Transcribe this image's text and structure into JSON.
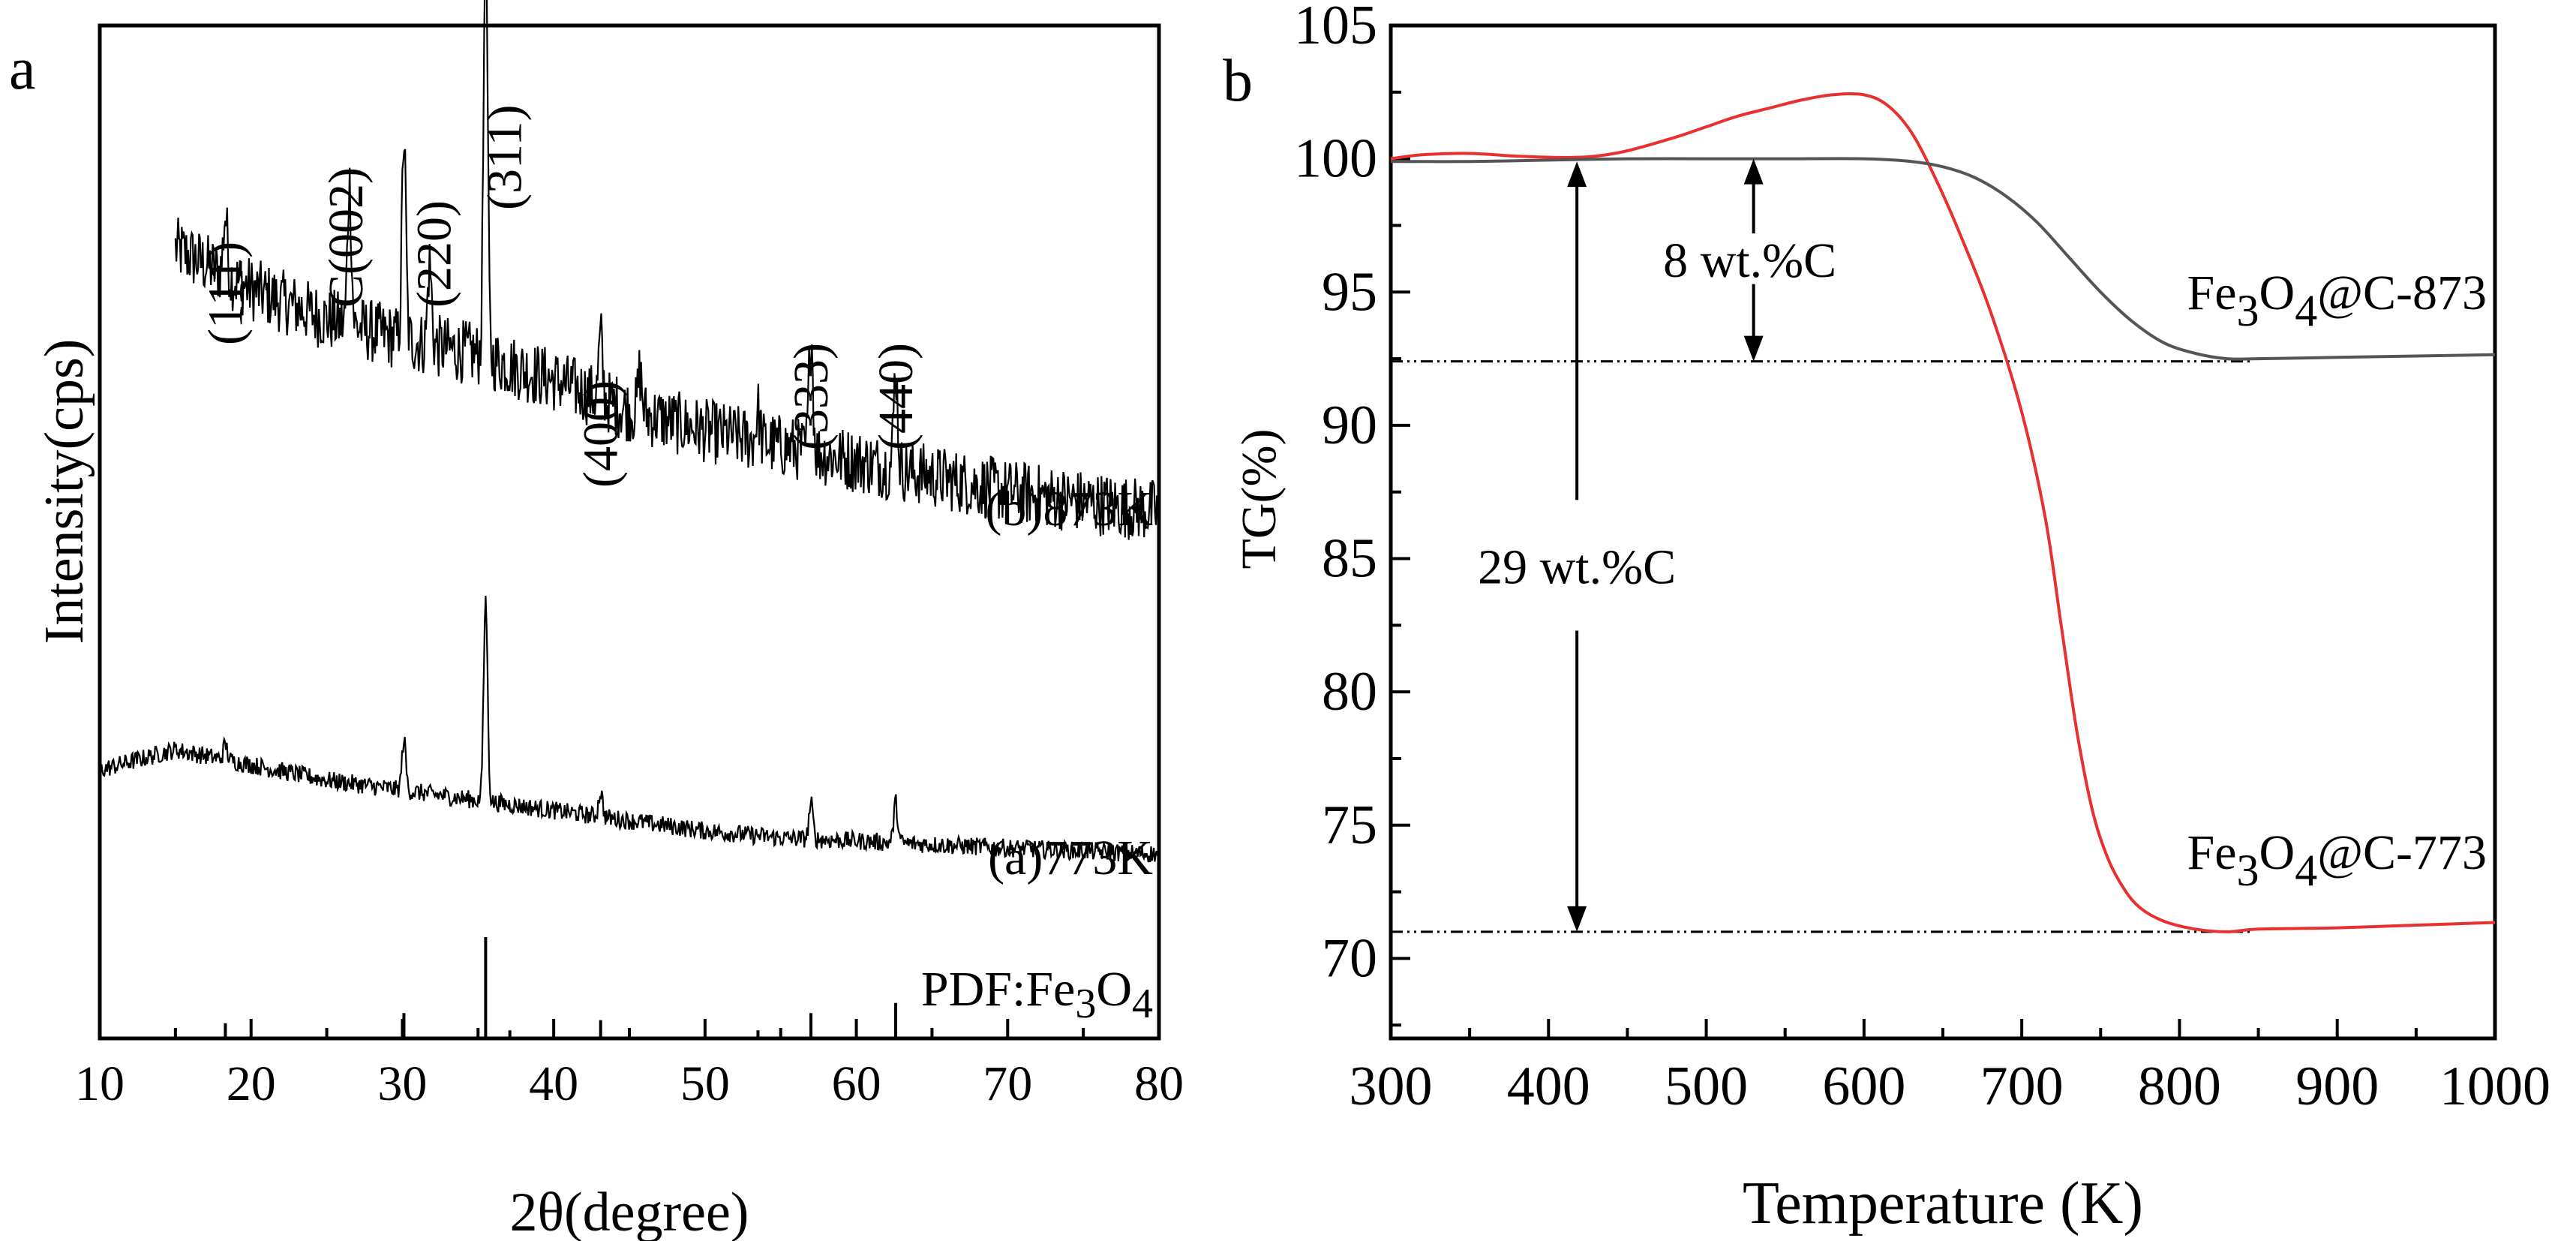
{
  "figure": {
    "panel_a_letter": "a",
    "panel_b_letter": "b"
  },
  "chart_data": [
    {
      "id": "xrd",
      "type": "line",
      "xlabel": "2θ(degree)",
      "ylabel": "Intensity(cps)",
      "xlim": [
        10,
        80
      ],
      "xticks": [
        10,
        20,
        30,
        40,
        50,
        60,
        70,
        80
      ],
      "series": [
        {
          "name": "(b)873K",
          "color": "#000000",
          "baseline": [
            [
              15,
              78
            ],
            [
              20,
              74
            ],
            [
              25,
              71
            ],
            [
              30,
              69
            ],
            [
              35,
              67.5
            ],
            [
              40,
              65
            ],
            [
              45,
              62
            ],
            [
              50,
              60
            ],
            [
              55,
              58.5
            ],
            [
              60,
              57
            ],
            [
              65,
              55.5
            ],
            [
              70,
              54
            ],
            [
              75,
              53
            ],
            [
              80,
              52
            ]
          ],
          "noise": 3.2,
          "peaks": [
            [
              18.3,
              6
            ],
            [
              26.5,
              14
            ],
            [
              30.1,
              20
            ],
            [
              31.8,
              8
            ],
            [
              35.5,
              43
            ],
            [
              43.1,
              6
            ],
            [
              45.7,
              4
            ],
            [
              53.5,
              3
            ],
            [
              57.0,
              12
            ],
            [
              62.6,
              10
            ]
          ]
        },
        {
          "name": "(a)773K",
          "color": "#000000",
          "baseline": [
            [
              10,
              26.5
            ],
            [
              15,
              28.5
            ],
            [
              20,
              27
            ],
            [
              25,
              25.5
            ],
            [
              30,
              24.5
            ],
            [
              35,
              23.5
            ],
            [
              40,
              22.5
            ],
            [
              45,
              21.5
            ],
            [
              50,
              20.5
            ],
            [
              55,
              19.8
            ],
            [
              60,
              19.5
            ],
            [
              70,
              18.8
            ],
            [
              80,
              18.2
            ]
          ],
          "noise": 0.9,
          "peaks": [
            [
              18.3,
              1.5
            ],
            [
              30.1,
              5
            ],
            [
              35.5,
              20
            ],
            [
              43.1,
              2.5
            ],
            [
              57.0,
              3.5
            ],
            [
              62.6,
              4
            ]
          ]
        }
      ],
      "reference": {
        "name": "PDF:Fe3O4",
        "label_main": "PDF:Fe",
        "label_sub1": "3",
        "label_mid": "O",
        "label_sub2": "4",
        "lines": [
          [
            18.3,
            1.5
          ],
          [
            30.1,
            2.5
          ],
          [
            35.5,
            10
          ],
          [
            37.1,
            0.8
          ],
          [
            43.1,
            1.8
          ],
          [
            53.5,
            0.8
          ],
          [
            57.0,
            2.5
          ],
          [
            62.6,
            3.5
          ]
        ]
      },
      "peak_labels": [
        {
          "text": "(111)",
          "x": 18.3
        },
        {
          "text": "C(002)",
          "x": 26.5
        },
        {
          "text": "(220)",
          "x": 30.1
        },
        {
          "text": "(311)",
          "x": 35.5
        },
        {
          "text": "(400)",
          "x": 43.1
        },
        {
          "text": "(333)",
          "x": 57.0
        },
        {
          "text": "(440)",
          "x": 62.6
        }
      ]
    },
    {
      "id": "tg",
      "type": "line",
      "xlabel": "Temperature (K)",
      "ylabel": "TG(%)",
      "xlim": [
        300,
        1000
      ],
      "ylim": [
        67,
        105
      ],
      "xticks": [
        300,
        400,
        500,
        600,
        700,
        800,
        900,
        1000
      ],
      "yticks": [
        70,
        75,
        80,
        85,
        90,
        95,
        100,
        105
      ],
      "series": [
        {
          "name": "Fe3O4@C-773",
          "label_main": "Fe",
          "label_sub1": "3",
          "label_mid": "O",
          "label_sub2": "4",
          "label_tail": "@C-773",
          "color": "#e8312f",
          "x": [
            300,
            320,
            350,
            380,
            410,
            430,
            450,
            480,
            500,
            520,
            540,
            560,
            580,
            600,
            615,
            630,
            645,
            660,
            680,
            700,
            715,
            725,
            735,
            745,
            755,
            765,
            775,
            790,
            810,
            830,
            850,
            900,
            950,
            1000
          ],
          "y": [
            100.0,
            100.15,
            100.2,
            100.1,
            100.05,
            100.1,
            100.3,
            100.8,
            101.2,
            101.6,
            101.9,
            102.2,
            102.4,
            102.4,
            102.0,
            101.0,
            99.3,
            97.3,
            94.3,
            90.5,
            86.5,
            82.5,
            78.5,
            75.5,
            73.7,
            72.6,
            71.9,
            71.4,
            71.1,
            71.0,
            71.1,
            71.15,
            71.25,
            71.35
          ]
        },
        {
          "name": "Fe3O4@C-873",
          "label_main": "Fe",
          "label_sub1": "3",
          "label_mid": "O",
          "label_sub2": "4",
          "label_tail": "@C-873",
          "color": "#555555",
          "x": [
            300,
            350,
            400,
            450,
            500,
            550,
            600,
            630,
            650,
            670,
            690,
            710,
            730,
            750,
            770,
            790,
            810,
            830,
            850,
            900,
            950,
            1000
          ],
          "y": [
            99.9,
            99.9,
            99.95,
            100.0,
            100.0,
            100.0,
            100.0,
            99.9,
            99.7,
            99.3,
            98.6,
            97.6,
            96.3,
            95.0,
            93.9,
            93.1,
            92.7,
            92.5,
            92.5,
            92.55,
            92.6,
            92.65
          ]
        }
      ],
      "reference_lines": [
        {
          "y": 92.4,
          "x_from": 300,
          "x_to": 845
        },
        {
          "y": 71.0,
          "x_from": 300,
          "x_to": 845
        }
      ],
      "annotations": [
        {
          "text": "8 wt.%C",
          "x": 530,
          "y_from": 100.0,
          "y_to": 92.4
        },
        {
          "text": "29 wt.%C",
          "x": 418,
          "y_from": 99.9,
          "y_to": 71.0
        }
      ]
    }
  ]
}
